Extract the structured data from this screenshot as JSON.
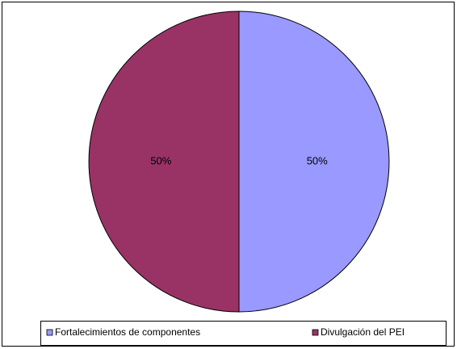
{
  "chart_data": {
    "type": "pie",
    "categories": [
      "Fortalecimientos de componentes",
      "Divulgación del PEI"
    ],
    "values": [
      50,
      50
    ],
    "value_labels": [
      "50%",
      "50%"
    ],
    "colors": [
      "#9999ff",
      "#993366"
    ],
    "legend": "bottom"
  }
}
